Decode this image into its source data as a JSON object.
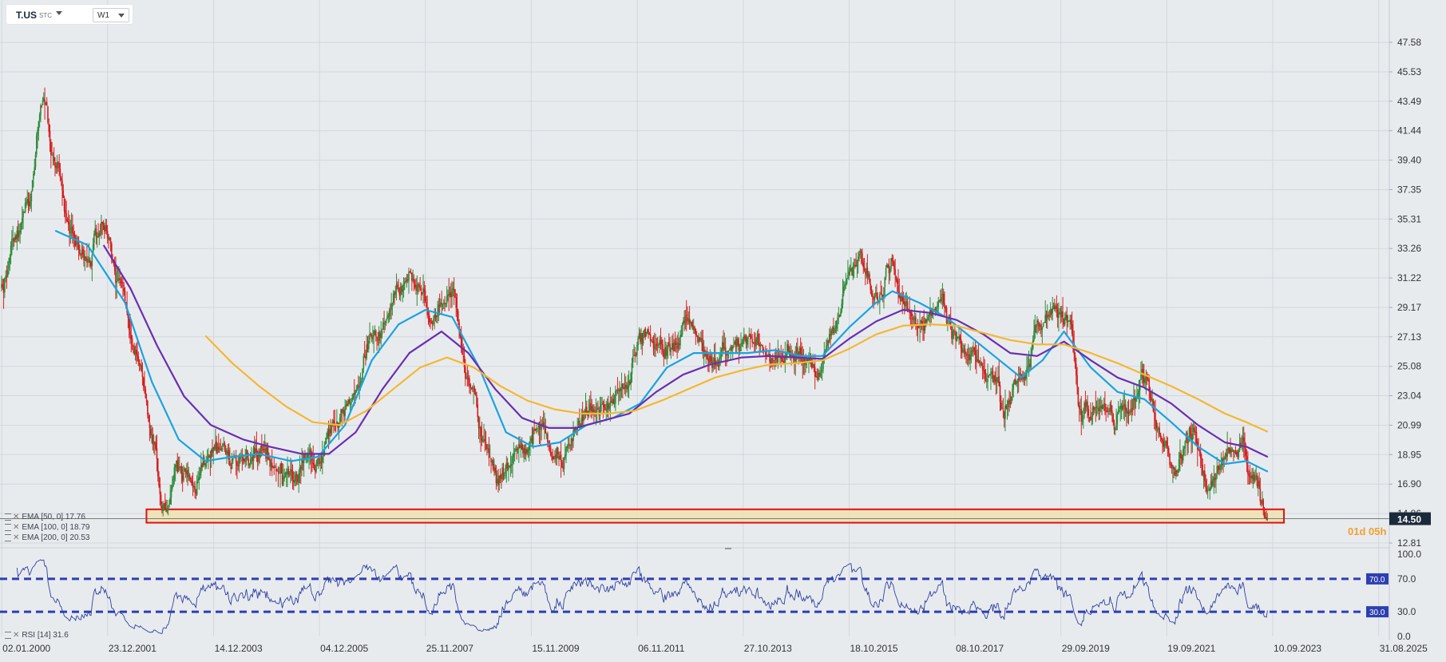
{
  "toolbar": {
    "symbol": "T.US",
    "symbol_sub": "STC",
    "timeframe": "W1"
  },
  "countdown": "01d 05h",
  "legend": {
    "ema50": "EMA [50, 0] 17.76",
    "ema100": "EMA [100, 0] 18.79",
    "ema200": "EMA [200, 0] 20.53",
    "rsi": "RSI [14] 31.6"
  },
  "colors": {
    "up": "#2e8b3a",
    "down": "#d42020",
    "ema50": "#1aa3e0",
    "ema100": "#6a2fb0",
    "ema200": "#f5b731",
    "rsi_line": "#3040a0",
    "rsi_levels": "#2d3fb0",
    "support_zone_fill": "#f0e2b0",
    "support_zone_border": "#e01010",
    "price_tag": "#1a2a3a"
  },
  "chart_data": [
    {
      "type": "candlestick",
      "title": "T.US",
      "interval": "W1",
      "x_ticks": [
        "02.01.2000",
        "23.12.2001",
        "14.12.2003",
        "04.12.2005",
        "25.11.2007",
        "15.11.2009",
        "06.11.2011",
        "27.10.2013",
        "18.10.2015",
        "08.10.2017",
        "29.09.2019",
        "19.09.2021",
        "10.09.2023",
        "31.08.2025"
      ],
      "y_ticks": [
        12.81,
        14.86,
        16.9,
        18.95,
        20.99,
        23.04,
        25.08,
        27.13,
        29.17,
        31.22,
        33.26,
        35.31,
        37.35,
        39.4,
        41.44,
        43.49,
        45.53,
        47.58
      ],
      "ylim": [
        12.81,
        47.58
      ],
      "current_price": 14.5,
      "price_path": [
        {
          "x": 2000.0,
          "y": 30.5
        },
        {
          "x": 2000.3,
          "y": 34.0
        },
        {
          "x": 2000.5,
          "y": 37.0
        },
        {
          "x": 2000.8,
          "y": 44.0
        },
        {
          "x": 2001.0,
          "y": 39.0
        },
        {
          "x": 2001.3,
          "y": 34.0
        },
        {
          "x": 2001.6,
          "y": 32.0
        },
        {
          "x": 2001.9,
          "y": 35.0
        },
        {
          "x": 2002.2,
          "y": 31.0
        },
        {
          "x": 2002.5,
          "y": 26.0
        },
        {
          "x": 2002.8,
          "y": 20.0
        },
        {
          "x": 2003.0,
          "y": 15.0
        },
        {
          "x": 2003.3,
          "y": 18.0
        },
        {
          "x": 2003.6,
          "y": 17.0
        },
        {
          "x": 2004.0,
          "y": 19.5
        },
        {
          "x": 2004.4,
          "y": 18.5
        },
        {
          "x": 2004.8,
          "y": 19.0
        },
        {
          "x": 2005.3,
          "y": 17.5
        },
        {
          "x": 2005.8,
          "y": 18.5
        },
        {
          "x": 2006.2,
          "y": 20.5
        },
        {
          "x": 2006.6,
          "y": 24.0
        },
        {
          "x": 2007.0,
          "y": 28.0
        },
        {
          "x": 2007.4,
          "y": 30.5
        },
        {
          "x": 2007.8,
          "y": 31.0
        },
        {
          "x": 2008.0,
          "y": 28.0
        },
        {
          "x": 2008.4,
          "y": 30.0
        },
        {
          "x": 2008.7,
          "y": 24.0
        },
        {
          "x": 2009.0,
          "y": 19.0
        },
        {
          "x": 2009.3,
          "y": 17.5
        },
        {
          "x": 2009.7,
          "y": 19.0
        },
        {
          "x": 2010.0,
          "y": 20.5
        },
        {
          "x": 2010.4,
          "y": 18.5
        },
        {
          "x": 2010.7,
          "y": 21.0
        },
        {
          "x": 2011.0,
          "y": 22.5
        },
        {
          "x": 2011.3,
          "y": 22.0
        },
        {
          "x": 2011.6,
          "y": 23.5
        },
        {
          "x": 2012.0,
          "y": 27.5
        },
        {
          "x": 2012.4,
          "y": 26.0
        },
        {
          "x": 2012.8,
          "y": 28.0
        },
        {
          "x": 2013.2,
          "y": 25.5
        },
        {
          "x": 2013.6,
          "y": 26.5
        },
        {
          "x": 2014.0,
          "y": 27.0
        },
        {
          "x": 2014.4,
          "y": 25.5
        },
        {
          "x": 2014.8,
          "y": 26.0
        },
        {
          "x": 2015.2,
          "y": 25.0
        },
        {
          "x": 2015.5,
          "y": 27.5
        },
        {
          "x": 2015.8,
          "y": 31.0
        },
        {
          "x": 2016.0,
          "y": 32.5
        },
        {
          "x": 2016.3,
          "y": 30.0
        },
        {
          "x": 2016.6,
          "y": 32.0
        },
        {
          "x": 2016.9,
          "y": 29.0
        },
        {
          "x": 2017.2,
          "y": 28.5
        },
        {
          "x": 2017.5,
          "y": 29.5
        },
        {
          "x": 2017.8,
          "y": 27.0
        },
        {
          "x": 2018.1,
          "y": 26.0
        },
        {
          "x": 2018.4,
          "y": 25.0
        },
        {
          "x": 2018.7,
          "y": 22.5
        },
        {
          "x": 2019.0,
          "y": 24.5
        },
        {
          "x": 2019.3,
          "y": 27.0
        },
        {
          "x": 2019.6,
          "y": 29.0
        },
        {
          "x": 2019.9,
          "y": 28.0
        },
        {
          "x": 2020.1,
          "y": 22.0
        },
        {
          "x": 2020.4,
          "y": 22.5
        },
        {
          "x": 2020.7,
          "y": 21.5
        },
        {
          "x": 2021.0,
          "y": 22.5
        },
        {
          "x": 2021.3,
          "y": 24.0
        },
        {
          "x": 2021.6,
          "y": 21.0
        },
        {
          "x": 2021.9,
          "y": 18.0
        },
        {
          "x": 2022.2,
          "y": 20.5
        },
        {
          "x": 2022.5,
          "y": 16.5
        },
        {
          "x": 2022.8,
          "y": 19.0
        },
        {
          "x": 2023.1,
          "y": 19.5
        },
        {
          "x": 2023.4,
          "y": 17.0
        },
        {
          "x": 2023.6,
          "y": 14.5
        }
      ],
      "series": [
        {
          "name": "EMA [50, 0]",
          "color": "#1aa3e0",
          "points": [
            {
              "x": 2001.0,
              "y": 34.5
            },
            {
              "x": 2001.6,
              "y": 33.5
            },
            {
              "x": 2002.3,
              "y": 29.5
            },
            {
              "x": 2002.8,
              "y": 24.0
            },
            {
              "x": 2003.3,
              "y": 20.0
            },
            {
              "x": 2003.8,
              "y": 18.5
            },
            {
              "x": 2004.3,
              "y": 18.8
            },
            {
              "x": 2004.8,
              "y": 19.0
            },
            {
              "x": 2005.4,
              "y": 18.5
            },
            {
              "x": 2005.9,
              "y": 18.8
            },
            {
              "x": 2006.4,
              "y": 21.0
            },
            {
              "x": 2006.9,
              "y": 25.5
            },
            {
              "x": 2007.4,
              "y": 28.0
            },
            {
              "x": 2007.9,
              "y": 29.0
            },
            {
              "x": 2008.4,
              "y": 28.5
            },
            {
              "x": 2008.9,
              "y": 25.0
            },
            {
              "x": 2009.4,
              "y": 20.5
            },
            {
              "x": 2009.9,
              "y": 19.5
            },
            {
              "x": 2010.4,
              "y": 19.8
            },
            {
              "x": 2010.9,
              "y": 21.0
            },
            {
              "x": 2011.4,
              "y": 21.5
            },
            {
              "x": 2011.9,
              "y": 22.5
            },
            {
              "x": 2012.4,
              "y": 25.0
            },
            {
              "x": 2012.9,
              "y": 26.0
            },
            {
              "x": 2013.4,
              "y": 26.0
            },
            {
              "x": 2013.9,
              "y": 26.0
            },
            {
              "x": 2014.4,
              "y": 26.2
            },
            {
              "x": 2014.9,
              "y": 25.8
            },
            {
              "x": 2015.3,
              "y": 25.8
            },
            {
              "x": 2015.8,
              "y": 27.8
            },
            {
              "x": 2016.3,
              "y": 29.5
            },
            {
              "x": 2016.6,
              "y": 30.3
            },
            {
              "x": 2017.1,
              "y": 29.5
            },
            {
              "x": 2017.6,
              "y": 28.5
            },
            {
              "x": 2018.1,
              "y": 27.0
            },
            {
              "x": 2018.6,
              "y": 25.5
            },
            {
              "x": 2019.0,
              "y": 24.3
            },
            {
              "x": 2019.4,
              "y": 25.5
            },
            {
              "x": 2019.8,
              "y": 27.5
            },
            {
              "x": 2020.3,
              "y": 25.0
            },
            {
              "x": 2020.8,
              "y": 23.3
            },
            {
              "x": 2021.3,
              "y": 22.8
            },
            {
              "x": 2021.8,
              "y": 21.2
            },
            {
              "x": 2022.3,
              "y": 19.5
            },
            {
              "x": 2022.8,
              "y": 18.3
            },
            {
              "x": 2023.2,
              "y": 18.5
            },
            {
              "x": 2023.6,
              "y": 17.76
            }
          ]
        },
        {
          "name": "EMA [100, 0]",
          "color": "#6a2fb0",
          "points": [
            {
              "x": 2001.9,
              "y": 33.5
            },
            {
              "x": 2002.4,
              "y": 30.5
            },
            {
              "x": 2002.9,
              "y": 26.5
            },
            {
              "x": 2003.4,
              "y": 23.0
            },
            {
              "x": 2003.9,
              "y": 21.0
            },
            {
              "x": 2004.5,
              "y": 20.0
            },
            {
              "x": 2005.0,
              "y": 19.5
            },
            {
              "x": 2005.6,
              "y": 19.0
            },
            {
              "x": 2006.1,
              "y": 19.0
            },
            {
              "x": 2006.6,
              "y": 20.5
            },
            {
              "x": 2007.1,
              "y": 23.5
            },
            {
              "x": 2007.6,
              "y": 26.0
            },
            {
              "x": 2008.2,
              "y": 27.5
            },
            {
              "x": 2008.7,
              "y": 26.0
            },
            {
              "x": 2009.2,
              "y": 23.5
            },
            {
              "x": 2009.7,
              "y": 21.5
            },
            {
              "x": 2010.2,
              "y": 20.8
            },
            {
              "x": 2010.7,
              "y": 20.8
            },
            {
              "x": 2011.2,
              "y": 21.3
            },
            {
              "x": 2011.7,
              "y": 21.8
            },
            {
              "x": 2012.2,
              "y": 23.3
            },
            {
              "x": 2012.7,
              "y": 24.5
            },
            {
              "x": 2013.2,
              "y": 25.2
            },
            {
              "x": 2013.8,
              "y": 25.7
            },
            {
              "x": 2014.3,
              "y": 25.8
            },
            {
              "x": 2014.8,
              "y": 25.7
            },
            {
              "x": 2015.3,
              "y": 25.6
            },
            {
              "x": 2015.8,
              "y": 27.0
            },
            {
              "x": 2016.3,
              "y": 28.2
            },
            {
              "x": 2016.8,
              "y": 29.0
            },
            {
              "x": 2017.3,
              "y": 28.8
            },
            {
              "x": 2017.8,
              "y": 28.3
            },
            {
              "x": 2018.3,
              "y": 27.3
            },
            {
              "x": 2018.8,
              "y": 26.0
            },
            {
              "x": 2019.3,
              "y": 25.8
            },
            {
              "x": 2019.8,
              "y": 26.8
            },
            {
              "x": 2020.3,
              "y": 25.5
            },
            {
              "x": 2020.8,
              "y": 24.3
            },
            {
              "x": 2021.3,
              "y": 23.6
            },
            {
              "x": 2021.8,
              "y": 22.5
            },
            {
              "x": 2022.3,
              "y": 21.0
            },
            {
              "x": 2022.8,
              "y": 19.8
            },
            {
              "x": 2023.2,
              "y": 19.5
            },
            {
              "x": 2023.6,
              "y": 18.79
            }
          ]
        },
        {
          "name": "EMA [200, 0]",
          "color": "#f5b731",
          "points": [
            {
              "x": 2003.8,
              "y": 27.2
            },
            {
              "x": 2004.3,
              "y": 25.3
            },
            {
              "x": 2004.8,
              "y": 23.7
            },
            {
              "x": 2005.3,
              "y": 22.3
            },
            {
              "x": 2005.8,
              "y": 21.2
            },
            {
              "x": 2006.3,
              "y": 21.0
            },
            {
              "x": 2006.8,
              "y": 22.0
            },
            {
              "x": 2007.3,
              "y": 23.5
            },
            {
              "x": 2007.8,
              "y": 25.0
            },
            {
              "x": 2008.3,
              "y": 25.7
            },
            {
              "x": 2008.8,
              "y": 25.0
            },
            {
              "x": 2009.3,
              "y": 23.7
            },
            {
              "x": 2009.8,
              "y": 22.7
            },
            {
              "x": 2010.3,
              "y": 22.1
            },
            {
              "x": 2010.8,
              "y": 21.8
            },
            {
              "x": 2011.3,
              "y": 21.8
            },
            {
              "x": 2011.8,
              "y": 22.0
            },
            {
              "x": 2012.3,
              "y": 22.7
            },
            {
              "x": 2012.8,
              "y": 23.5
            },
            {
              "x": 2013.3,
              "y": 24.3
            },
            {
              "x": 2013.8,
              "y": 24.8
            },
            {
              "x": 2014.3,
              "y": 25.2
            },
            {
              "x": 2014.8,
              "y": 25.3
            },
            {
              "x": 2015.3,
              "y": 25.5
            },
            {
              "x": 2015.8,
              "y": 26.3
            },
            {
              "x": 2016.3,
              "y": 27.3
            },
            {
              "x": 2016.8,
              "y": 27.9
            },
            {
              "x": 2017.3,
              "y": 28.0
            },
            {
              "x": 2017.8,
              "y": 27.9
            },
            {
              "x": 2018.3,
              "y": 27.4
            },
            {
              "x": 2018.8,
              "y": 26.9
            },
            {
              "x": 2019.3,
              "y": 26.6
            },
            {
              "x": 2019.8,
              "y": 26.6
            },
            {
              "x": 2020.3,
              "y": 26.0
            },
            {
              "x": 2020.8,
              "y": 25.3
            },
            {
              "x": 2021.3,
              "y": 24.5
            },
            {
              "x": 2021.8,
              "y": 23.7
            },
            {
              "x": 2022.3,
              "y": 22.8
            },
            {
              "x": 2022.8,
              "y": 21.8
            },
            {
              "x": 2023.2,
              "y": 21.2
            },
            {
              "x": 2023.6,
              "y": 20.53
            }
          ]
        }
      ],
      "support_zone": {
        "x_start": 2002.7,
        "x_end": 2023.9,
        "y_low": 14.22,
        "y_high": 15.15
      }
    },
    {
      "type": "line",
      "title": "RSI [14]",
      "ylim": [
        0,
        100
      ],
      "y_ticks": [
        0.0,
        30.0,
        70.0,
        100.0
      ],
      "levels": [
        70.0,
        30.0
      ],
      "level_labels": [
        "70.0",
        "30.0"
      ],
      "last_value": 31.6
    }
  ]
}
